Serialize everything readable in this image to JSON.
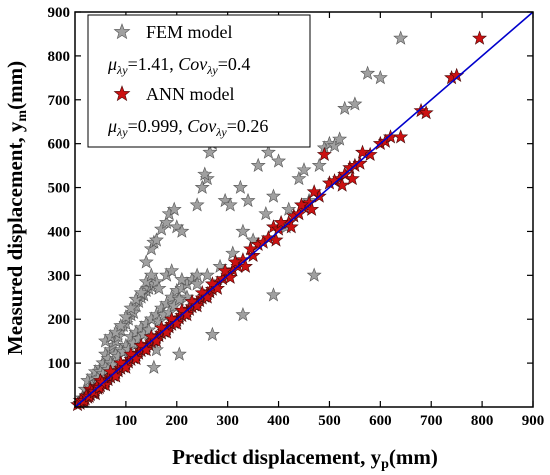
{
  "chart_data": {
    "type": "scatter",
    "xlabel": "Predict displacement, y",
    "xlabel_sub": "p",
    "xlabel_unit": "(mm)",
    "ylabel": "Measured displacement, y",
    "ylabel_sub": "m",
    "ylabel_unit": "(mm)",
    "xlim": [
      0,
      900
    ],
    "ylim": [
      0,
      900
    ],
    "xticks": [
      100,
      200,
      300,
      400,
      500,
      600,
      700,
      800,
      900
    ],
    "yticks": [
      100,
      200,
      300,
      400,
      500,
      600,
      700,
      800,
      900
    ],
    "legend_position": "top-left",
    "reference_line": {
      "from": [
        0,
        0
      ],
      "to": [
        900,
        900
      ],
      "color": "#0000cc"
    },
    "series": [
      {
        "name": "FEM model",
        "stat_mu": "μ",
        "stat_mu_sub": "λy",
        "stat_mu_value": "=1.41, ",
        "stat_cov": "Cov",
        "stat_cov_sub": "λy",
        "stat_cov_value": "=0.4",
        "marker": "star",
        "color": "#a0a0a0",
        "points": [
          [
            20,
            40
          ],
          [
            25,
            60
          ],
          [
            30,
            45
          ],
          [
            35,
            70
          ],
          [
            40,
            80
          ],
          [
            45,
            55
          ],
          [
            50,
            90
          ],
          [
            55,
            100
          ],
          [
            60,
            120
          ],
          [
            65,
            110
          ],
          [
            70,
            130
          ],
          [
            75,
            140
          ],
          [
            80,
            150
          ],
          [
            85,
            160
          ],
          [
            90,
            175
          ],
          [
            95,
            185
          ],
          [
            100,
            190
          ],
          [
            105,
            200
          ],
          [
            110,
            210
          ],
          [
            115,
            215
          ],
          [
            120,
            230
          ],
          [
            125,
            240
          ],
          [
            130,
            250
          ],
          [
            135,
            255
          ],
          [
            140,
            265
          ],
          [
            145,
            270
          ],
          [
            150,
            275
          ],
          [
            155,
            280
          ],
          [
            160,
            285
          ],
          [
            165,
            270
          ],
          [
            60,
            150
          ],
          [
            70,
            160
          ],
          [
            80,
            170
          ],
          [
            90,
            185
          ],
          [
            100,
            205
          ],
          [
            110,
            225
          ],
          [
            120,
            245
          ],
          [
            130,
            260
          ],
          [
            140,
            285
          ],
          [
            150,
            300
          ],
          [
            50,
            80
          ],
          [
            60,
            90
          ],
          [
            70,
            100
          ],
          [
            80,
            120
          ],
          [
            90,
            130
          ],
          [
            100,
            140
          ],
          [
            110,
            160
          ],
          [
            120,
            170
          ],
          [
            130,
            180
          ],
          [
            140,
            190
          ],
          [
            150,
            200
          ],
          [
            160,
            210
          ],
          [
            170,
            225
          ],
          [
            180,
            235
          ],
          [
            190,
            250
          ],
          [
            200,
            265
          ],
          [
            210,
            270
          ],
          [
            220,
            280
          ],
          [
            230,
            290
          ],
          [
            240,
            300
          ],
          [
            140,
            330
          ],
          [
            150,
            360
          ],
          [
            155,
            375
          ],
          [
            160,
            380
          ],
          [
            170,
            405
          ],
          [
            180,
            420
          ],
          [
            185,
            440
          ],
          [
            195,
            450
          ],
          [
            200,
            410
          ],
          [
            210,
            400
          ],
          [
            180,
            300
          ],
          [
            190,
            310
          ],
          [
            210,
            290
          ],
          [
            220,
            250
          ],
          [
            160,
            130
          ],
          [
            155,
            90
          ],
          [
            205,
            120
          ],
          [
            240,
            460
          ],
          [
            250,
            500
          ],
          [
            260,
            520
          ],
          [
            255,
            530
          ],
          [
            265,
            580
          ],
          [
            270,
            600
          ],
          [
            280,
            610
          ],
          [
            290,
            620
          ],
          [
            300,
            615
          ],
          [
            295,
            470
          ],
          [
            305,
            460
          ],
          [
            325,
            500
          ],
          [
            340,
            470
          ],
          [
            360,
            550
          ],
          [
            380,
            580
          ],
          [
            390,
            480
          ],
          [
            400,
            560
          ],
          [
            420,
            450
          ],
          [
            440,
            520
          ],
          [
            450,
            540
          ],
          [
            460,
            470
          ],
          [
            480,
            550
          ],
          [
            490,
            590
          ],
          [
            500,
            600
          ],
          [
            510,
            595
          ],
          [
            520,
            610
          ],
          [
            530,
            680
          ],
          [
            550,
            690
          ],
          [
            575,
            760
          ],
          [
            600,
            750
          ],
          [
            640,
            840
          ],
          [
            470,
            300
          ],
          [
            390,
            255
          ],
          [
            330,
            210
          ],
          [
            270,
            165
          ],
          [
            350,
            380
          ],
          [
            375,
            440
          ],
          [
            415,
            410
          ],
          [
            330,
            400
          ],
          [
            310,
            350
          ],
          [
            285,
            320
          ],
          [
            260,
            300
          ],
          [
            240,
            280
          ],
          [
            30,
            30
          ],
          [
            40,
            50
          ],
          [
            15,
            20
          ],
          [
            10,
            15
          ],
          [
            45,
            65
          ],
          [
            55,
            75
          ],
          [
            65,
            85
          ],
          [
            75,
            95
          ],
          [
            85,
            115
          ],
          [
            95,
            125
          ],
          [
            105,
            130
          ],
          [
            115,
            145
          ],
          [
            125,
            155
          ],
          [
            135,
            165
          ],
          [
            145,
            175
          ],
          [
            165,
            195
          ],
          [
            175,
            210
          ],
          [
            185,
            215
          ],
          [
            195,
            230
          ],
          [
            205,
            245
          ]
        ]
      },
      {
        "name": "ANN model",
        "stat_mu": "μ",
        "stat_mu_sub": "λy",
        "stat_mu_value": "=0.999, ",
        "stat_cov": "Cov",
        "stat_cov_sub": "λy",
        "stat_cov_value": "=0.26",
        "marker": "star",
        "color": "#cc1111",
        "points": [
          [
            10,
            8
          ],
          [
            15,
            12
          ],
          [
            20,
            18
          ],
          [
            25,
            22
          ],
          [
            30,
            28
          ],
          [
            35,
            32
          ],
          [
            40,
            38
          ],
          [
            45,
            42
          ],
          [
            50,
            48
          ],
          [
            55,
            52
          ],
          [
            60,
            58
          ],
          [
            65,
            62
          ],
          [
            70,
            68
          ],
          [
            75,
            72
          ],
          [
            80,
            78
          ],
          [
            85,
            82
          ],
          [
            90,
            88
          ],
          [
            95,
            92
          ],
          [
            100,
            98
          ],
          [
            105,
            102
          ],
          [
            110,
            108
          ],
          [
            115,
            112
          ],
          [
            120,
            118
          ],
          [
            125,
            122
          ],
          [
            130,
            128
          ],
          [
            135,
            132
          ],
          [
            140,
            138
          ],
          [
            145,
            142
          ],
          [
            150,
            148
          ],
          [
            155,
            152
          ],
          [
            160,
            158
          ],
          [
            165,
            162
          ],
          [
            170,
            168
          ],
          [
            175,
            172
          ],
          [
            180,
            178
          ],
          [
            185,
            182
          ],
          [
            190,
            188
          ],
          [
            195,
            192
          ],
          [
            200,
            198
          ],
          [
            205,
            202
          ],
          [
            210,
            208
          ],
          [
            215,
            212
          ],
          [
            220,
            218
          ],
          [
            225,
            222
          ],
          [
            230,
            228
          ],
          [
            235,
            232
          ],
          [
            240,
            238
          ],
          [
            245,
            242
          ],
          [
            250,
            248
          ],
          [
            255,
            252
          ],
          [
            260,
            258
          ],
          [
            265,
            262
          ],
          [
            270,
            268
          ],
          [
            275,
            275
          ],
          [
            280,
            282
          ],
          [
            290,
            292
          ],
          [
            300,
            300
          ],
          [
            310,
            312
          ],
          [
            320,
            320
          ],
          [
            330,
            335
          ],
          [
            350,
            345
          ],
          [
            360,
            370
          ],
          [
            370,
            375
          ],
          [
            380,
            385
          ],
          [
            390,
            410
          ],
          [
            400,
            405
          ],
          [
            420,
            420
          ],
          [
            430,
            435
          ],
          [
            440,
            440
          ],
          [
            450,
            455
          ],
          [
            460,
            465
          ],
          [
            480,
            480
          ],
          [
            490,
            575
          ],
          [
            500,
            510
          ],
          [
            520,
            520
          ],
          [
            530,
            530
          ],
          [
            540,
            545
          ],
          [
            550,
            550
          ],
          [
            560,
            555
          ],
          [
            580,
            575
          ],
          [
            600,
            600
          ],
          [
            610,
            605
          ],
          [
            620,
            615
          ],
          [
            640,
            615
          ],
          [
            680,
            675
          ],
          [
            690,
            670
          ],
          [
            740,
            750
          ],
          [
            750,
            755
          ],
          [
            795,
            840
          ],
          [
            30,
            40
          ],
          [
            40,
            30
          ],
          [
            50,
            60
          ],
          [
            60,
            50
          ],
          [
            70,
            80
          ],
          [
            80,
            70
          ],
          [
            90,
            100
          ],
          [
            100,
            90
          ],
          [
            110,
            120
          ],
          [
            120,
            110
          ],
          [
            130,
            140
          ],
          [
            140,
            130
          ],
          [
            150,
            160
          ],
          [
            160,
            150
          ],
          [
            170,
            180
          ],
          [
            180,
            170
          ],
          [
            190,
            200
          ],
          [
            200,
            190
          ],
          [
            210,
            220
          ],
          [
            220,
            210
          ],
          [
            230,
            240
          ],
          [
            240,
            230
          ],
          [
            250,
            260
          ],
          [
            260,
            250
          ],
          [
            270,
            280
          ],
          [
            280,
            270
          ],
          [
            295,
            310
          ],
          [
            305,
            295
          ],
          [
            315,
            330
          ],
          [
            335,
            320
          ],
          [
            345,
            360
          ],
          [
            395,
            380
          ],
          [
            405,
            420
          ],
          [
            425,
            410
          ],
          [
            445,
            460
          ],
          [
            465,
            450
          ],
          [
            470,
            490
          ],
          [
            510,
            515
          ],
          [
            525,
            505
          ],
          [
            545,
            520
          ],
          [
            565,
            580
          ],
          [
            5,
            5
          ],
          [
            12,
            15
          ],
          [
            18,
            14
          ],
          [
            22,
            25
          ],
          [
            28,
            24
          ],
          [
            33,
            36
          ],
          [
            38,
            34
          ],
          [
            43,
            46
          ],
          [
            48,
            44
          ],
          [
            53,
            56
          ]
        ]
      }
    ]
  }
}
